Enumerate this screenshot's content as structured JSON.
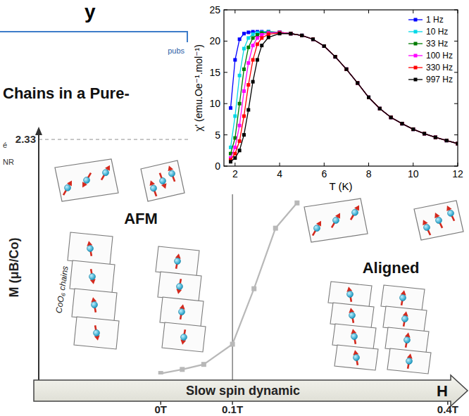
{
  "page": {
    "header_fragment": "y",
    "publisher_fragment": "pubs",
    "title_fragment": "Chains in a Pure-",
    "side_fragments": [
      "é",
      "NR"
    ]
  },
  "chart_data": [
    {
      "type": "line",
      "marker": "square",
      "x_label": "T (K)",
      "y_label": "χ' (emu.Oe⁻¹.mol⁻¹)",
      "xlim": [
        1.5,
        12
      ],
      "ylim": [
        0,
        25
      ],
      "xticks": [
        2,
        4,
        6,
        8,
        10,
        12
      ],
      "yticks": [
        0,
        5,
        10,
        15,
        20,
        25
      ],
      "grid": false,
      "legend": "top-right",
      "x": [
        1.8,
        2.0,
        2.2,
        2.4,
        2.6,
        2.8,
        3.0,
        3.2,
        3.5,
        4.0,
        4.5,
        5.0,
        5.5,
        6.0,
        6.5,
        7.0,
        7.5,
        8.0,
        8.5,
        9.0,
        9.5,
        10.0,
        10.5,
        11.0,
        11.5,
        12.0
      ],
      "series": [
        {
          "name": "1 Hz",
          "color": "#0000ff",
          "values": [
            9.3,
            17.0,
            20.3,
            21.2,
            21.4,
            21.5,
            21.5,
            21.5,
            21.5,
            21.4,
            21.2,
            20.9,
            20.3,
            19.2,
            17.5,
            15.5,
            13.3,
            11.0,
            9.2,
            7.8,
            6.8,
            5.9,
            5.2,
            4.6,
            4.1,
            3.6
          ]
        },
        {
          "name": "10 Hz",
          "color": "#00d8e6",
          "values": [
            3.0,
            8.0,
            14.5,
            18.8,
            20.5,
            21.1,
            21.3,
            21.4,
            21.5,
            21.4,
            21.2,
            20.9,
            20.3,
            19.2,
            17.5,
            15.5,
            13.3,
            11.0,
            9.2,
            7.8,
            6.8,
            5.9,
            5.2,
            4.6,
            4.1,
            3.6
          ]
        },
        {
          "name": "33 Hz",
          "color": "#007a00",
          "values": [
            2.0,
            4.5,
            10.0,
            15.5,
            19.0,
            20.5,
            21.0,
            21.3,
            21.4,
            21.4,
            21.2,
            20.9,
            20.3,
            19.2,
            17.5,
            15.5,
            13.3,
            11.0,
            9.2,
            7.8,
            6.8,
            5.9,
            5.2,
            4.6,
            4.1,
            3.6
          ]
        },
        {
          "name": "100 Hz",
          "color": "#ff00ff",
          "values": [
            1.3,
            3.0,
            6.5,
            12.0,
            16.5,
            19.3,
            20.5,
            21.0,
            21.3,
            21.4,
            21.2,
            20.9,
            20.3,
            19.2,
            17.5,
            15.5,
            13.3,
            11.0,
            9.2,
            7.8,
            6.8,
            5.9,
            5.2,
            4.6,
            4.1,
            3.6
          ]
        },
        {
          "name": "330 Hz",
          "color": "#ff0000",
          "values": [
            1.0,
            2.0,
            4.0,
            8.0,
            13.0,
            17.0,
            19.5,
            20.5,
            21.1,
            21.3,
            21.2,
            20.9,
            20.3,
            19.2,
            17.5,
            15.5,
            13.3,
            11.0,
            9.2,
            7.8,
            6.8,
            5.9,
            5.2,
            4.6,
            4.1,
            3.6
          ]
        },
        {
          "name": "997 Hz",
          "color": "#000000",
          "values": [
            0.7,
            1.3,
            2.5,
            5.0,
            9.0,
            13.5,
            17.0,
            19.3,
            20.6,
            21.2,
            21.2,
            20.9,
            20.3,
            19.2,
            17.5,
            15.5,
            13.3,
            11.0,
            9.2,
            7.8,
            6.8,
            5.9,
            5.2,
            4.6,
            4.1,
            3.6
          ]
        }
      ]
    },
    {
      "type": "line",
      "marker": "square",
      "color": "#b8b8b8",
      "x_label": "H",
      "y_label": "M (μB/Co)",
      "xlim": [
        -0.17,
        0.41
      ],
      "ylim": [
        0,
        2.4
      ],
      "xticks": [
        {
          "value": 0,
          "label": "0T"
        },
        {
          "value": 0.1,
          "label": "0.1T"
        },
        {
          "value": 0.4,
          "label": "0.4T"
        }
      ],
      "yticks": [
        2.33
      ],
      "grid": false,
      "x": [
        0,
        0.03,
        0.06,
        0.1,
        0.13,
        0.16,
        0.19
      ],
      "values": [
        0.01,
        0.05,
        0.1,
        0.3,
        0.85,
        1.45,
        1.7
      ],
      "annotations": [
        "AFM",
        "Aligned",
        "Slow spin dynamic",
        "CoO₆ chains"
      ]
    }
  ]
}
